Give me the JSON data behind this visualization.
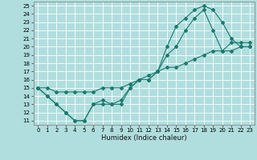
{
  "xlabel": "Humidex (Indice chaleur)",
  "xlim": [
    -0.5,
    23.5
  ],
  "ylim": [
    10.5,
    25.5
  ],
  "xticks": [
    0,
    1,
    2,
    3,
    4,
    5,
    6,
    7,
    8,
    9,
    10,
    11,
    12,
    13,
    14,
    15,
    16,
    17,
    18,
    19,
    20,
    21,
    22,
    23
  ],
  "yticks": [
    11,
    12,
    13,
    14,
    15,
    16,
    17,
    18,
    19,
    20,
    21,
    22,
    23,
    24,
    25
  ],
  "bg_color": "#b0dede",
  "line_color": "#1a7a6e",
  "grid_color": "#ffffff",
  "line1_x": [
    0,
    1,
    2,
    3,
    4,
    5,
    6,
    7,
    8,
    9,
    10,
    11,
    12,
    13,
    14,
    15,
    16,
    17,
    18,
    19,
    20,
    21,
    22,
    23
  ],
  "line1_y": [
    15,
    14,
    13,
    12,
    11,
    11,
    13,
    13,
    13,
    13,
    15,
    16,
    16,
    17,
    20,
    22.5,
    23.5,
    24.5,
    25,
    24.5,
    23,
    21,
    20,
    20
  ],
  "line2_x": [
    0,
    1,
    2,
    3,
    4,
    5,
    6,
    7,
    8,
    9,
    10,
    11,
    12,
    13,
    14,
    15,
    16,
    17,
    18,
    19,
    20,
    21,
    22,
    23
  ],
  "line2_y": [
    15,
    14,
    13,
    12,
    11,
    11,
    13,
    13.5,
    13,
    13.5,
    15,
    16,
    16,
    17,
    19,
    20,
    22,
    23.5,
    24.5,
    22,
    19.5,
    20.5,
    20.5,
    20.5
  ],
  "line3_x": [
    0,
    1,
    2,
    3,
    4,
    5,
    6,
    7,
    8,
    9,
    10,
    11,
    12,
    13,
    14,
    15,
    16,
    17,
    18,
    19,
    20,
    21,
    22,
    23
  ],
  "line3_y": [
    15,
    15,
    14.5,
    14.5,
    14.5,
    14.5,
    14.5,
    15,
    15,
    15,
    15.5,
    16,
    16.5,
    17,
    17.5,
    17.5,
    18,
    18.5,
    19,
    19.5,
    19.5,
    19.5,
    20,
    20
  ],
  "xlabel_fontsize": 6,
  "tick_fontsize": 5
}
